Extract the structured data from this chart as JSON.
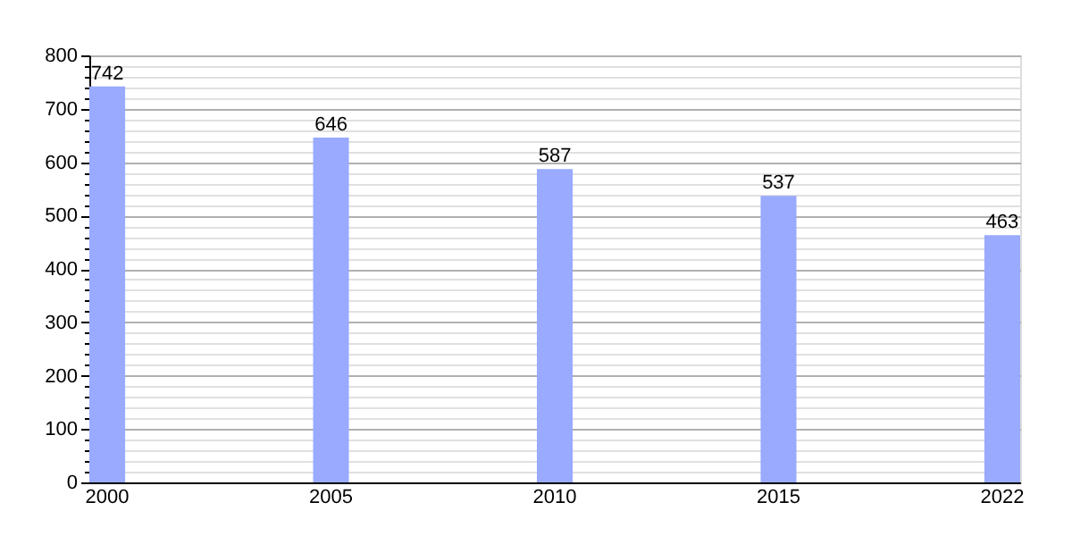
{
  "chart_data": {
    "type": "bar",
    "categories": [
      "2000",
      "2005",
      "2010",
      "2015",
      "2022"
    ],
    "values": [
      742,
      646,
      587,
      537,
      463
    ],
    "color": "#99aaff",
    "ylim": [
      0,
      800
    ],
    "yticks": [
      0,
      {
        "value": 20,
        "label": null
      },
      {
        "value": 40,
        "label": null
      },
      {
        "value": 60,
        "label": null
      },
      {
        "value": 80,
        "label": null
      },
      100,
      {
        "value": 120,
        "label": null
      },
      {
        "value": 140,
        "label": null
      },
      {
        "value": 160,
        "label": null
      },
      {
        "value": 180,
        "label": null
      },
      200,
      {
        "value": 220,
        "label": null
      },
      {
        "value": 240,
        "label": null
      },
      {
        "value": 260,
        "label": null
      },
      {
        "value": 280,
        "label": null
      },
      300,
      {
        "value": 320,
        "label": null
      },
      {
        "value": 340,
        "label": null
      },
      {
        "value": 360,
        "label": null
      },
      {
        "value": 380,
        "label": null
      },
      400,
      {
        "value": 420,
        "label": null
      },
      {
        "value": 440,
        "label": null
      },
      {
        "value": 460,
        "label": null
      },
      {
        "value": 480,
        "label": null
      },
      500,
      {
        "value": 520,
        "label": null
      },
      {
        "value": 540,
        "label": null
      },
      {
        "value": 560,
        "label": null
      },
      {
        "value": 580,
        "label": null
      },
      600,
      {
        "value": 620,
        "label": null
      },
      {
        "value": 640,
        "label": null
      },
      {
        "value": 660,
        "label": null
      },
      {
        "value": 680,
        "label": null
      },
      700,
      {
        "value": 720,
        "label": null
      },
      {
        "value": 740,
        "label": null
      },
      {
        "value": 760,
        "label": null
      },
      {
        "value": 780,
        "label": null
      },
      800
    ],
    "grid": "y",
    "data_labels": true
  }
}
